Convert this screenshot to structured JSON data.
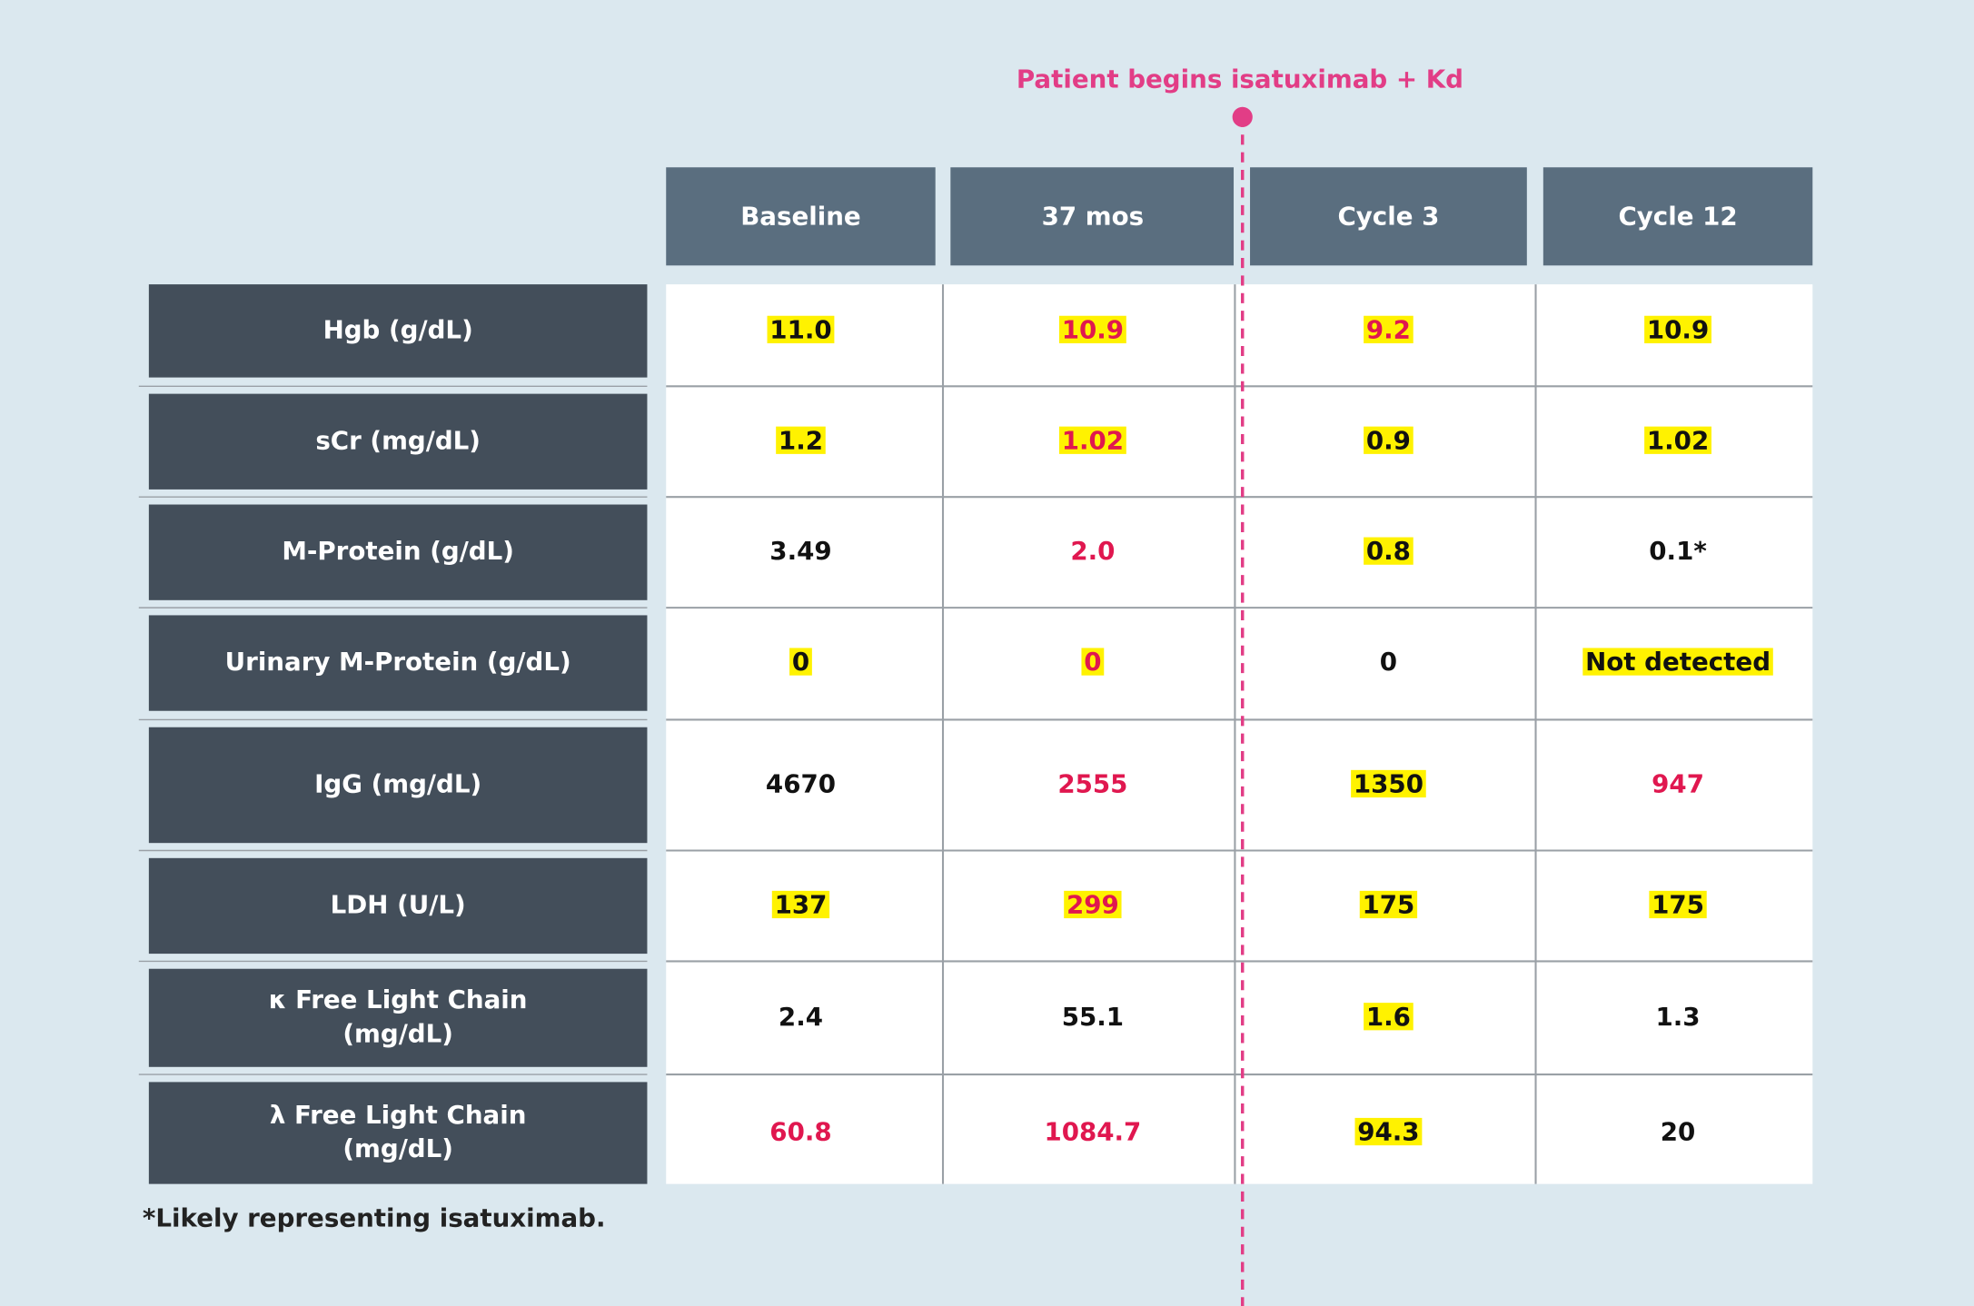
{
  "header": {
    "annotation": "Patient begins isatuximab + Kd"
  },
  "table": {
    "columns": [
      "Baseline",
      "37 mos",
      "Cycle 3",
      "Cycle 12"
    ],
    "highlight_color": "#fff200",
    "rows": [
      {
        "label": [
          "Hgb (g/dL)"
        ],
        "cells": [
          {
            "text": "11.0",
            "highlight": true,
            "color": "#111111"
          },
          {
            "text": "10.9",
            "highlight": true,
            "color": "#e0174f"
          },
          {
            "text": "9.2",
            "highlight": true,
            "color": "#e0174f"
          },
          {
            "text": "10.9",
            "highlight": true,
            "color": "#111111"
          }
        ]
      },
      {
        "label": [
          "sCr (mg/dL)"
        ],
        "cells": [
          {
            "text": "1.2",
            "highlight": true,
            "color": "#111111"
          },
          {
            "text": "1.02",
            "highlight": true,
            "color": "#e0174f"
          },
          {
            "text": "0.9",
            "highlight": true,
            "color": "#111111"
          },
          {
            "text": "1.02",
            "highlight": true,
            "color": "#111111"
          }
        ]
      },
      {
        "label": [
          "M-Protein (g/dL)"
        ],
        "cells": [
          {
            "text": "3.49",
            "highlight": false,
            "color": "#111111"
          },
          {
            "text": "2.0",
            "highlight": false,
            "color": "#e0174f"
          },
          {
            "text": "0.8",
            "highlight": true,
            "color": "#111111"
          },
          {
            "text": "0.1*",
            "highlight": false,
            "color": "#111111"
          }
        ]
      },
      {
        "label": [
          "Urinary M-Protein (g/dL)"
        ],
        "cells": [
          {
            "text": "0",
            "highlight": true,
            "color": "#111111"
          },
          {
            "text": "0",
            "highlight": true,
            "color": "#e0174f"
          },
          {
            "text": "0",
            "highlight": false,
            "color": "#111111"
          },
          {
            "text": "Not detected",
            "highlight": true,
            "color": "#111111"
          }
        ]
      },
      {
        "label": [
          "IgG (mg/dL)"
        ],
        "cells": [
          {
            "text": "4670",
            "highlight": false,
            "color": "#111111"
          },
          {
            "text": "2555",
            "highlight": false,
            "color": "#e0174f"
          },
          {
            "text": "1350",
            "highlight": true,
            "color": "#111111"
          },
          {
            "text": "947",
            "highlight": false,
            "color": "#e0174f"
          }
        ]
      },
      {
        "label": [
          "LDH (U/L)"
        ],
        "cells": [
          {
            "text": "137",
            "highlight": true,
            "color": "#111111"
          },
          {
            "text": "299",
            "highlight": true,
            "color": "#e0174f"
          },
          {
            "text": "175",
            "highlight": true,
            "color": "#111111"
          },
          {
            "text": "175",
            "highlight": true,
            "color": "#111111"
          }
        ]
      },
      {
        "label": [
          "κ Free Light Chain",
          "(mg/dL)"
        ],
        "cells": [
          {
            "text": "2.4",
            "highlight": false,
            "color": "#111111"
          },
          {
            "text": "55.1",
            "highlight": false,
            "color": "#111111"
          },
          {
            "text": "1.6",
            "highlight": true,
            "color": "#111111"
          },
          {
            "text": "1.3",
            "highlight": false,
            "color": "#111111"
          }
        ]
      },
      {
        "label": [
          "λ Free Light Chain",
          "(mg/dL)"
        ],
        "cells": [
          {
            "text": "60.8",
            "highlight": false,
            "color": "#e0174f"
          },
          {
            "text": "1084.7",
            "highlight": false,
            "color": "#e0174f"
          },
          {
            "text": "94.3",
            "highlight": true,
            "color": "#111111"
          },
          {
            "text": "20",
            "highlight": false,
            "color": "#111111"
          }
        ]
      }
    ]
  },
  "footnote": "*Likely representing isatuximab."
}
